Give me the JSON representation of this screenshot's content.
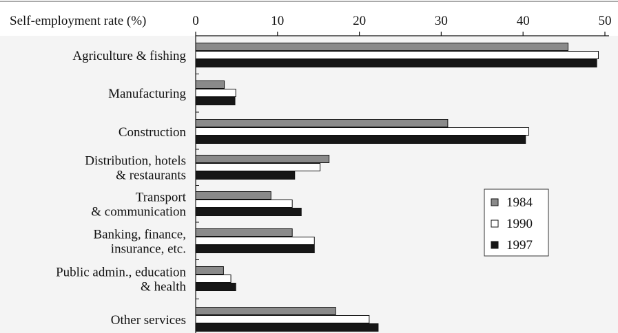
{
  "chart_data": {
    "type": "bar",
    "orientation": "horizontal",
    "title": "",
    "xlabel": "Self-employment rate (%)",
    "ylabel": "",
    "xlim": [
      0,
      50
    ],
    "x_ticks": [
      0,
      10,
      20,
      30,
      40,
      50
    ],
    "grid": false,
    "legend_position": "right",
    "categories": [
      [
        "Agriculture & fishing"
      ],
      [
        "Manufacturing"
      ],
      [
        "Construction"
      ],
      [
        "Distribution, hotels",
        "& restaurants"
      ],
      [
        "Transport",
        "& communication"
      ],
      [
        "Banking, finance,",
        "insurance, etc."
      ],
      [
        "Public admin., education",
        "& health"
      ],
      [
        "Other services"
      ]
    ],
    "series": [
      {
        "name": "1984",
        "color": "#8a8a8a",
        "values": [
          45.5,
          3.5,
          30.8,
          16.3,
          9.2,
          11.8,
          3.4,
          17.1
        ]
      },
      {
        "name": "1990",
        "color": "#ffffff",
        "values": [
          49.2,
          4.9,
          40.7,
          15.2,
          11.8,
          14.5,
          4.3,
          21.2
        ]
      },
      {
        "name": "1997",
        "color": "#161616",
        "values": [
          49.0,
          4.8,
          40.3,
          12.1,
          12.9,
          14.5,
          4.9,
          22.3
        ]
      }
    ]
  }
}
